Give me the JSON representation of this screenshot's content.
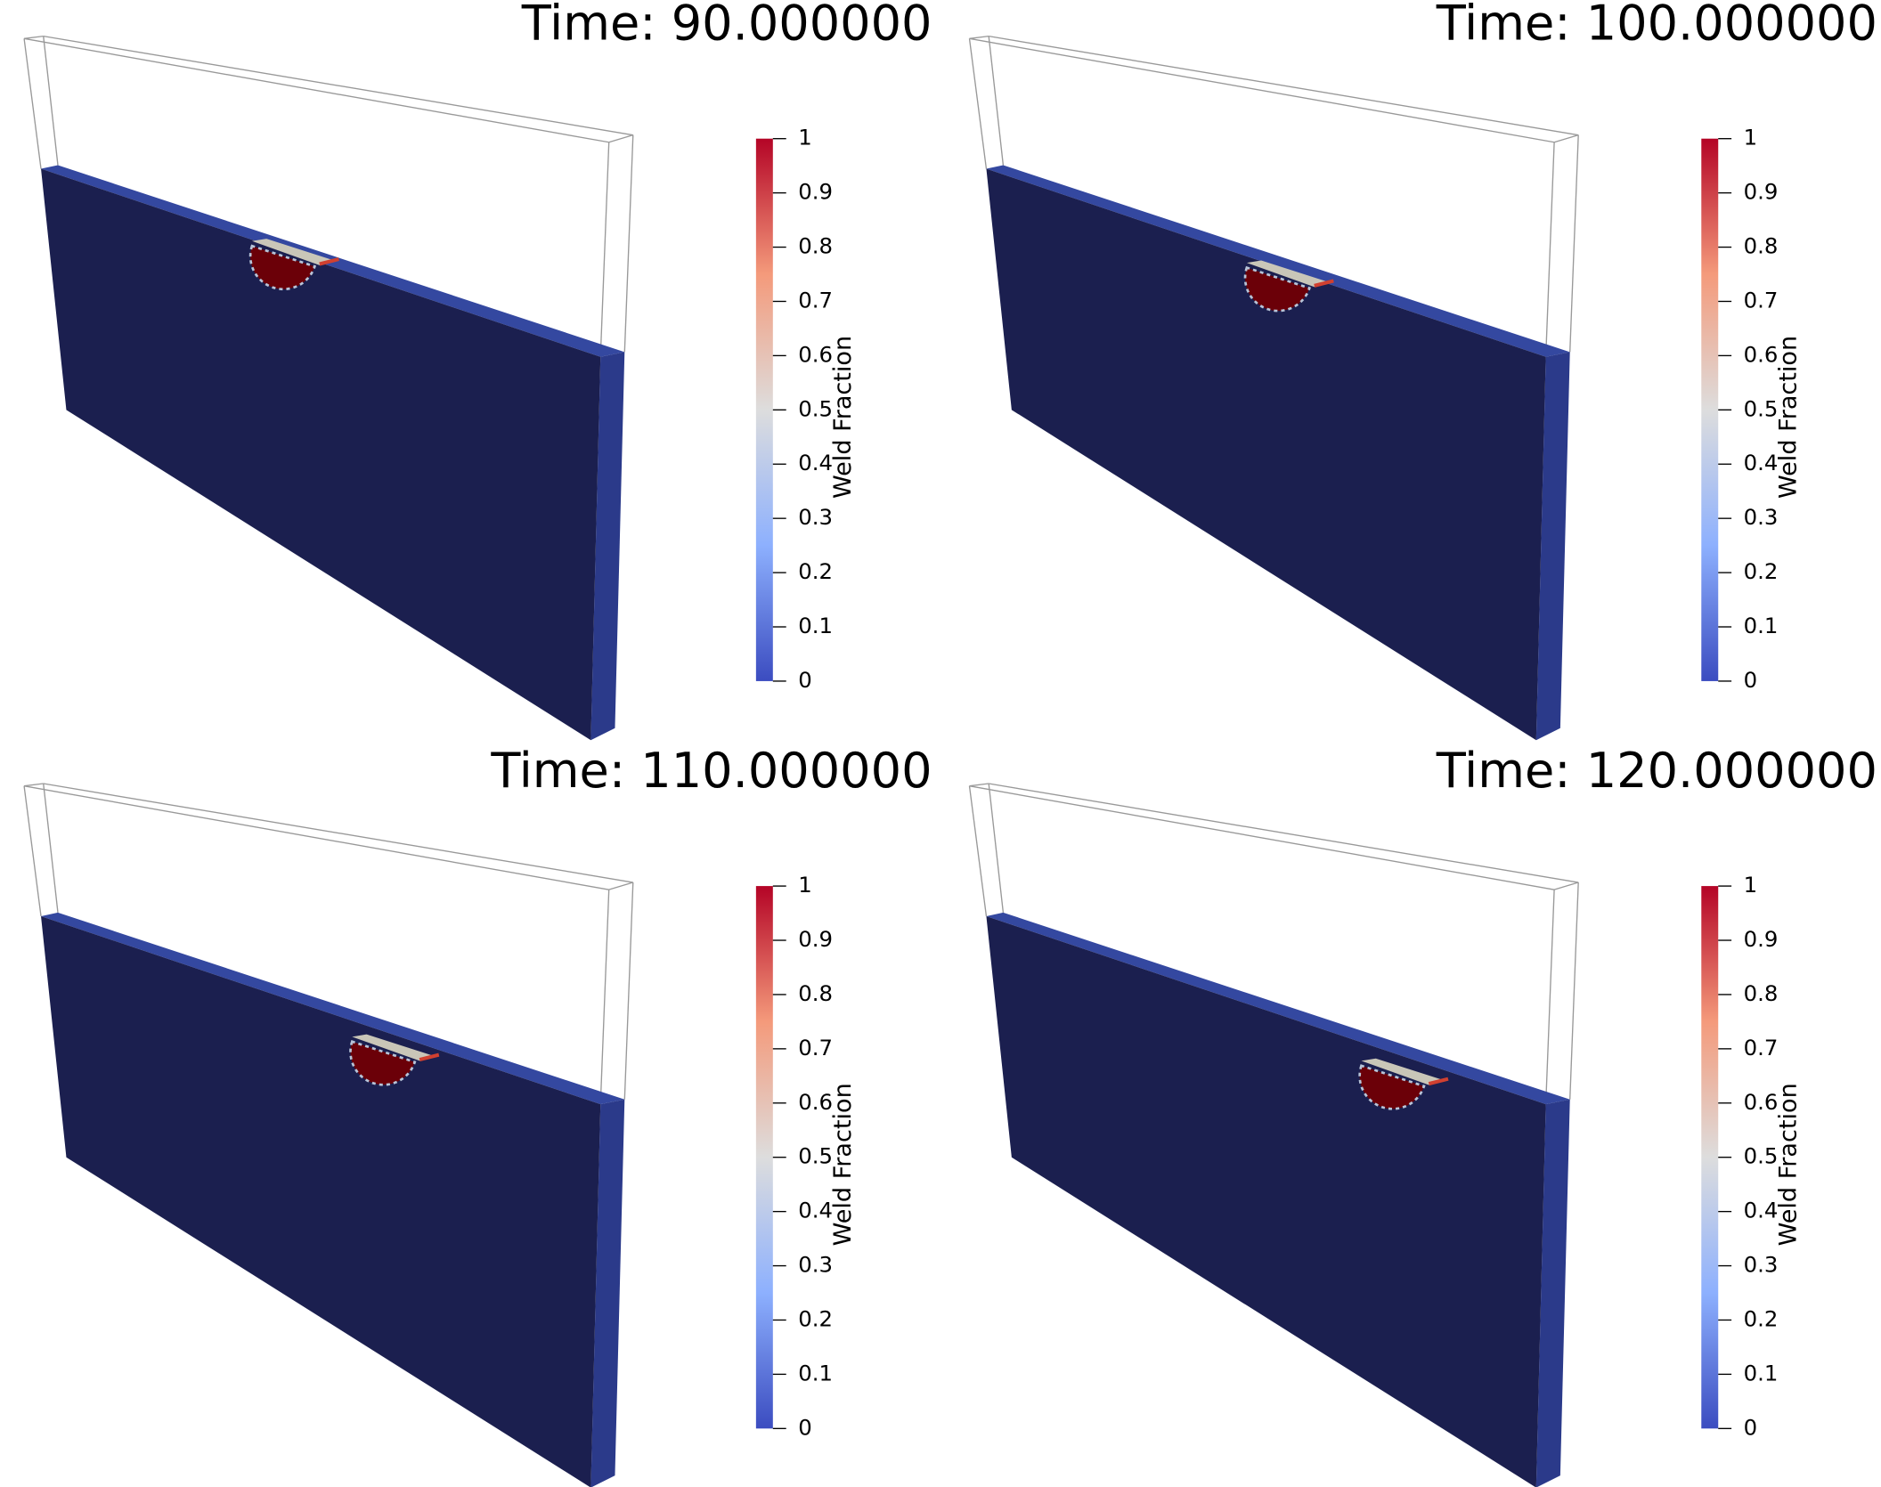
{
  "panels": [
    {
      "title": "Time: 90.000000",
      "colorbar": {
        "label": "Weld Fraction",
        "range": [
          0,
          1
        ],
        "ticks": [
          0,
          0.1,
          0.2,
          0.3,
          0.4,
          0.5,
          0.6,
          0.7,
          0.8,
          0.9,
          1
        ]
      }
    },
    {
      "title": "Time: 100.000000",
      "colorbar": {
        "label": "Weld Fraction",
        "range": [
          0,
          1
        ],
        "ticks": [
          0,
          0.1,
          0.2,
          0.3,
          0.4,
          0.5,
          0.6,
          0.7,
          0.8,
          0.9,
          1
        ]
      }
    },
    {
      "title": "Time: 110.000000",
      "colorbar": {
        "label": "Weld Fraction",
        "range": [
          0,
          1
        ],
        "ticks": [
          0,
          0.1,
          0.2,
          0.3,
          0.4,
          0.5,
          0.6,
          0.7,
          0.8,
          0.9,
          1
        ]
      }
    },
    {
      "title": "Time: 120.000000",
      "colorbar": {
        "label": "Weld Fraction",
        "range": [
          0,
          1
        ],
        "ticks": [
          0,
          0.1,
          0.2,
          0.3,
          0.4,
          0.5,
          0.6,
          0.7,
          0.8,
          0.9,
          1
        ]
      }
    }
  ]
}
